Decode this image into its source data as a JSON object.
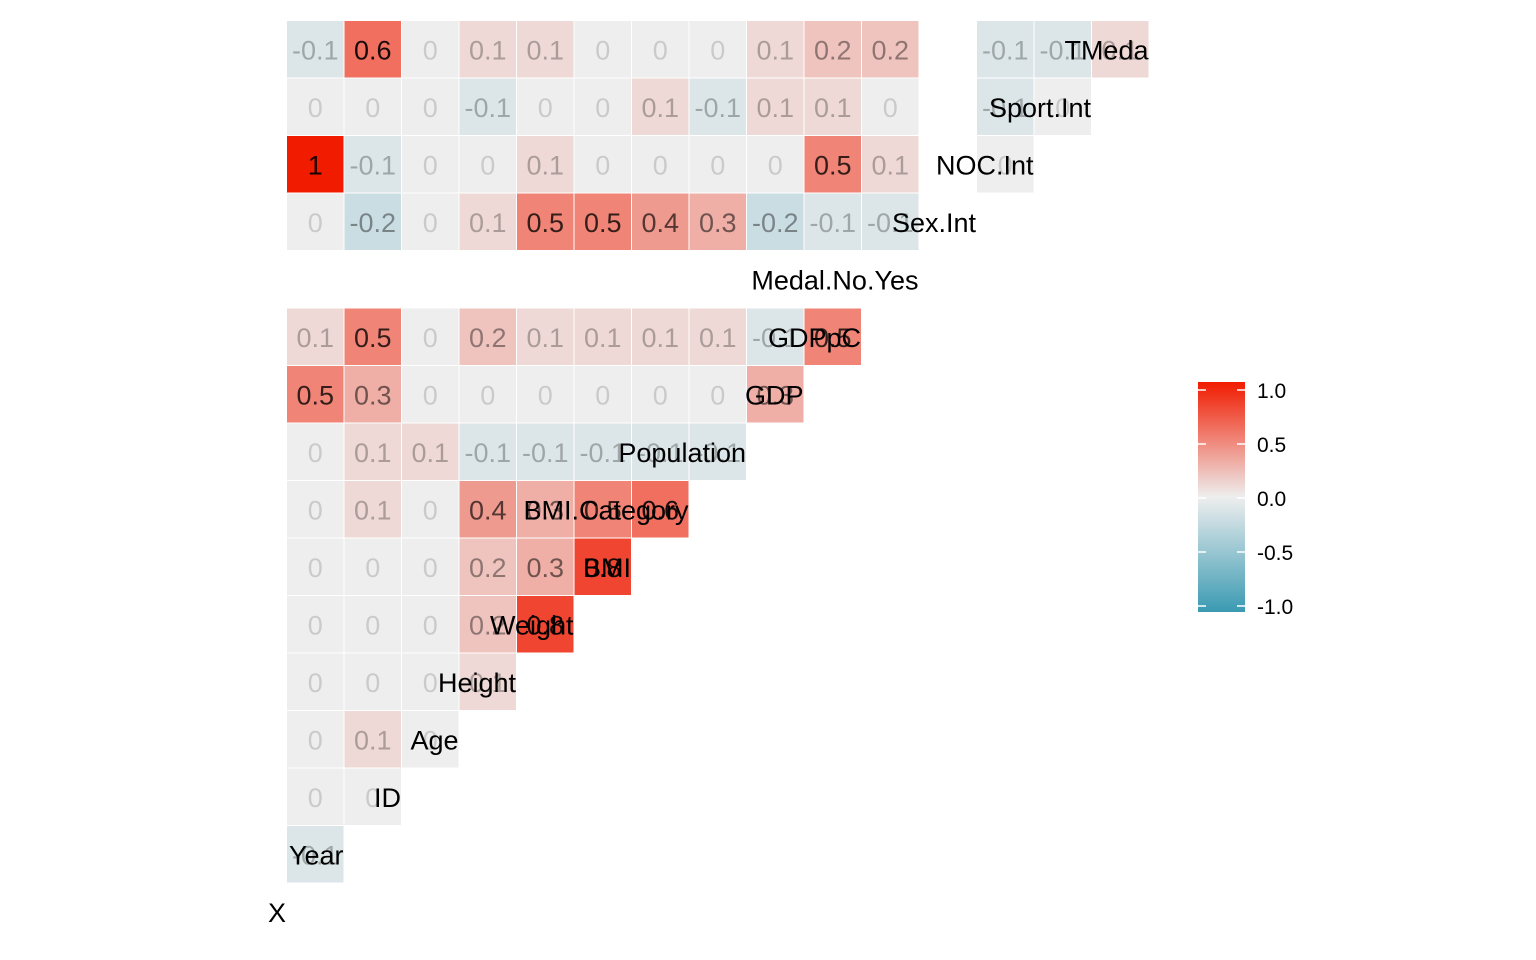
{
  "chart_data": {
    "type": "heatmap",
    "title": "",
    "variables": [
      "X",
      "Year",
      "ID",
      "Age",
      "Height",
      "Weight",
      "BMI",
      "BMI.Category",
      "Population",
      "GDP",
      "GDPpC",
      "Medal.No.Yes",
      "Sex.Int",
      "NOC.Int",
      "Sport.Int",
      "TMeda"
    ],
    "rows": [
      {
        "label": "Year",
        "values": [
          -0.1
        ]
      },
      {
        "label": "ID",
        "values": [
          0,
          0
        ]
      },
      {
        "label": "Age",
        "values": [
          0,
          0.1,
          0
        ]
      },
      {
        "label": "Height",
        "values": [
          0,
          0,
          0,
          0.1
        ]
      },
      {
        "label": "Weight",
        "values": [
          0,
          0,
          0,
          0.2,
          0.8
        ]
      },
      {
        "label": "BMI",
        "values": [
          0,
          0,
          0,
          0.2,
          0.3,
          0.8
        ]
      },
      {
        "label": "BMI.Category",
        "values": [
          0,
          0.1,
          0,
          0.4,
          0.3,
          0.5,
          0.6
        ]
      },
      {
        "label": "Population",
        "values": [
          0,
          0.1,
          0.1,
          -0.1,
          -0.1,
          -0.1,
          -0.1,
          -0.1
        ]
      },
      {
        "label": "GDP",
        "values": [
          0.5,
          0.3,
          0,
          0,
          0,
          0,
          0,
          0,
          0.3
        ]
      },
      {
        "label": "GDPpC",
        "values": [
          0.1,
          0.5,
          0,
          0.2,
          0.1,
          0.1,
          0.1,
          0.1,
          -0.1,
          0.5
        ]
      },
      {
        "label": "Medal.No.Yes",
        "values": [
          null,
          null,
          null,
          null,
          null,
          null,
          null,
          null,
          null,
          null,
          null
        ]
      },
      {
        "label": "Sex.Int",
        "values": [
          0,
          -0.2,
          0,
          0.1,
          0.5,
          0.5,
          0.4,
          0.3,
          -0.2,
          -0.1,
          -0.1,
          null
        ]
      },
      {
        "label": "NOC.Int",
        "values": [
          1,
          -0.1,
          0,
          0,
          0.1,
          0,
          0,
          0,
          0,
          0.5,
          0.1,
          null,
          0
        ]
      },
      {
        "label": "Sport.Int",
        "values": [
          0,
          0,
          0,
          -0.1,
          0,
          0,
          0.1,
          -0.1,
          0.1,
          0.1,
          0,
          null,
          -0.1,
          0
        ]
      },
      {
        "label": "TMeda",
        "values": [
          -0.1,
          0.6,
          0,
          0.1,
          0.1,
          0,
          0,
          0,
          0.1,
          0.2,
          0.2,
          null,
          -0.1,
          -0.1,
          0.1
        ]
      }
    ],
    "scale": {
      "min": -1,
      "mid": 0,
      "max": 1,
      "low_color": "#3A9AB2",
      "mid_color": "#EEEEEE",
      "high_color": "#F11B00"
    },
    "legend": {
      "position": "right",
      "ticks": [
        1.0,
        0.5,
        0.0,
        -0.5,
        -1.0
      ],
      "tick_labels": [
        "1.0",
        "0.5",
        "0.0",
        "-0.5",
        "-1.0"
      ]
    },
    "xlabel": "",
    "ylabel": ""
  }
}
